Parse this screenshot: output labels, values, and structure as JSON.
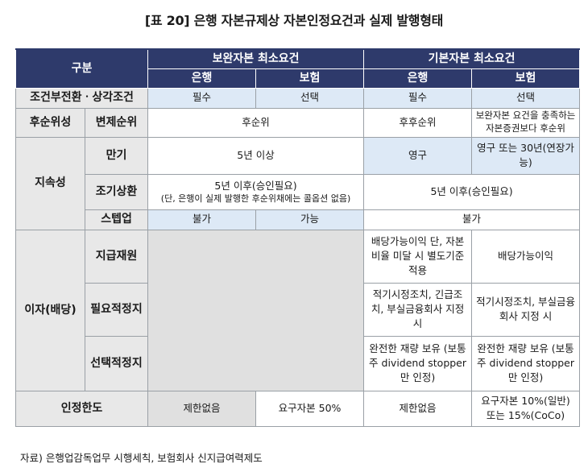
{
  "title": "[표 20] 은행 자본규제상 자본인정요건과 실제 발행형태",
  "header": {
    "category": "구분",
    "group_supplement": "보완자본 최소요건",
    "group_basic": "기본자본 최소요건",
    "bank": "은행",
    "insurance": "보험"
  },
  "rows": {
    "conditional": {
      "label": "조건부전환ㆍ상각조건",
      "c1": "필수",
      "c2": "선택",
      "c3": "필수",
      "c4": "선택"
    },
    "subordination": {
      "group": "후순위성",
      "label": "변제순위",
      "c12": "후순위",
      "c3": "후후순위",
      "c4": "보완자본 요건을 충족하는 자본증권보다 후순위"
    },
    "permanence": {
      "group": "지속성",
      "maturity_label": "만기",
      "maturity_c12": "5년 이상",
      "maturity_c3": "영구",
      "maturity_c4": "영구 또는 30년(연장가능)",
      "call_label": "조기상환",
      "call_c12_line1": "5년 이후(승인필요)",
      "call_c12_line2": "(단, 은행이 실제 발행한 후순위채에는 콜옵션 없음)",
      "call_c34": "5년 이후(승인필요)",
      "stepup_label": "스텝업",
      "stepup_c1": "불가",
      "stepup_c2": "가능",
      "stepup_c34": "불가"
    },
    "interest": {
      "group": "이자(배당)",
      "source_label": "지급재원",
      "source_c3": "배당가능이익 단, 자본비율 미달 시 별도기준 적용",
      "source_c4": "배당가능이익",
      "mandatory_label": "필요적정지",
      "mandatory_c3": "적기시정조치, 긴급조치, 부실금융회사 지정 시",
      "mandatory_c4": "적기시정조치, 부실금융회사 지정 시",
      "optional_label": "선택적정지",
      "optional_c3": "완전한 재량 보유 (보통주 dividend stopper만 인정)",
      "optional_c4": "완전한 재량 보유 (보통주 dividend stopper만 인정)"
    },
    "recognition": {
      "label": "인정한도",
      "c1": "제한없음",
      "c2": "요구자본 50%",
      "c3": "제한없음",
      "c4": "요구자본 10%(일반) 또는 15%(CoCo)"
    }
  },
  "source_note": "자료) 은행업감독업무 시행세칙, 보험회사 신지급여력제도"
}
